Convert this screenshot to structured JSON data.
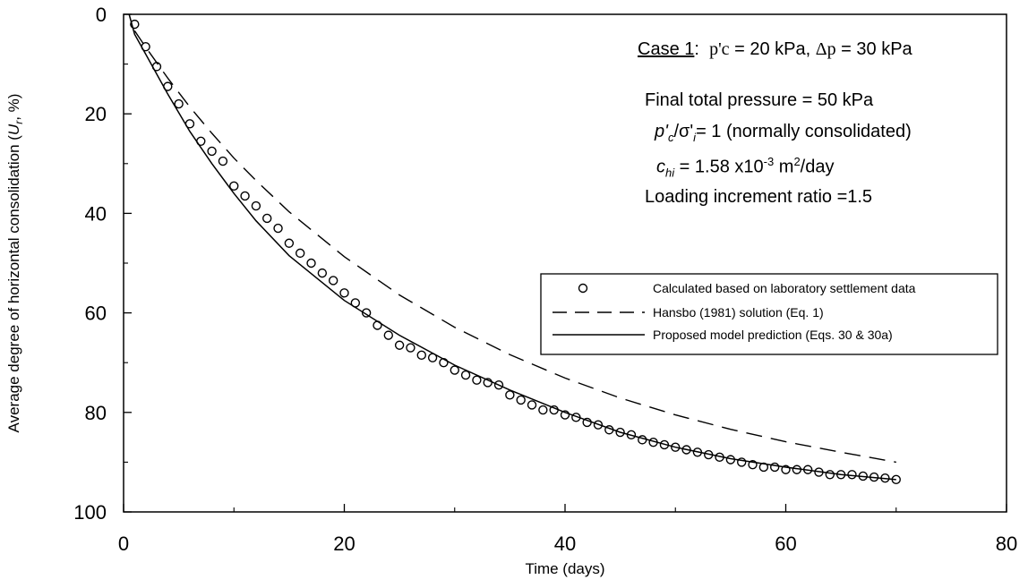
{
  "chart_data": {
    "type": "scatter",
    "xlabel": "Time (days)",
    "ylabel_prefix": "Average degree of horizontal consolidation (",
    "ylabel_var": "U",
    "ylabel_sub": "r",
    "ylabel_suffix": ", %)",
    "xlim": [
      0,
      80
    ],
    "ylim": [
      0,
      100
    ],
    "y_inverted": true,
    "x_ticks": [
      0,
      20,
      40,
      60,
      80
    ],
    "y_ticks": [
      0,
      20,
      40,
      60,
      80,
      100
    ],
    "x_tick_labels": [
      "0",
      "20",
      "40",
      "60",
      "80"
    ],
    "y_tick_labels": [
      "0",
      "20",
      "40",
      "60",
      "80",
      "100"
    ],
    "grid": false,
    "legend_position": "middle-right",
    "series": [
      {
        "name": "Calculated based on laboratory settlement data",
        "style": "open-circle markers",
        "x": [
          1,
          2,
          3,
          4,
          5,
          6,
          7,
          8,
          9,
          10,
          11,
          12,
          13,
          14,
          15,
          16,
          17,
          18,
          19,
          20,
          21,
          22,
          23,
          24,
          25,
          26,
          27,
          28,
          29,
          30,
          31,
          32,
          33,
          34,
          35,
          36,
          37,
          38,
          39,
          40,
          41,
          42,
          43,
          44,
          45,
          46,
          47,
          48,
          49,
          50,
          51,
          52,
          53,
          54,
          55,
          56,
          57,
          58,
          59,
          60,
          61,
          62,
          63,
          64,
          65,
          66,
          67,
          68,
          69,
          70
        ],
        "y": [
          2,
          6.5,
          10.5,
          14.5,
          18,
          22,
          25.5,
          27.5,
          29.5,
          34.5,
          36.5,
          38.5,
          41,
          43,
          46,
          48,
          50,
          52,
          53.5,
          56,
          58,
          60,
          62.5,
          64.5,
          66.5,
          67,
          68.5,
          69,
          70,
          71.5,
          72.5,
          73.5,
          74,
          74.5,
          76.5,
          77.5,
          78.5,
          79.5,
          79.5,
          80.5,
          81,
          82,
          82.5,
          83.5,
          84,
          84.5,
          85.5,
          86,
          86.5,
          87,
          87.5,
          88,
          88.5,
          89,
          89.5,
          90,
          90.5,
          91,
          91,
          91.5,
          91.5,
          91.5,
          92,
          92.5,
          92.5,
          92.5,
          92.8,
          93,
          93.2,
          93.5
        ]
      },
      {
        "name": "Hansbo (1981) solution (Eq. 1)",
        "style": "dashed line",
        "x": [
          1,
          2,
          4,
          6,
          8,
          10,
          12,
          15,
          20,
          25,
          30,
          35,
          40,
          45,
          50,
          55,
          60,
          65,
          70
        ],
        "y": [
          3.3,
          6.6,
          12.8,
          18.6,
          23.9,
          28.9,
          33.4,
          39.7,
          48.7,
          56.4,
          62.9,
          68.4,
          73.1,
          77.1,
          80.5,
          83.4,
          85.9,
          88.0,
          90.0
        ]
      },
      {
        "name": "Proposed model prediction (Eqs. 30 & 30a)",
        "style": "solid line",
        "x": [
          0.5,
          1,
          2,
          4,
          6,
          8,
          10,
          12,
          15,
          20,
          25,
          30,
          35,
          40,
          45,
          50,
          55,
          60,
          65,
          70
        ],
        "y": [
          0,
          4,
          8,
          16,
          23.5,
          30,
          36,
          41.5,
          48.5,
          57.5,
          64.5,
          70.5,
          75.5,
          80,
          84,
          87,
          89.3,
          91,
          92.5,
          93.5
        ]
      }
    ]
  },
  "annotations": {
    "case_label": "Case 1",
    "case_colon": ":",
    "pc_symbol": "p'c",
    "pc_value": " = 20 kPa, ",
    "dp_symbol": "Δp",
    "dp_value": " = 30 kPa",
    "final_pressure": "Final total pressure = 50 kPa",
    "ratio_p": "p'",
    "ratio_p_sub": "c",
    "ratio_slash": "/σ'",
    "ratio_sigma_sub": "i",
    "ratio_rest": "= 1 (normally consolidated)",
    "ch_c": "c",
    "ch_sub": "hi",
    "ch_value": " = 1.58 x10",
    "ch_exp": "-3",
    "ch_m": " m",
    "ch_m_exp": "2",
    "ch_unit": "/day",
    "loading_ratio": "Loading increment ratio =1.5"
  }
}
